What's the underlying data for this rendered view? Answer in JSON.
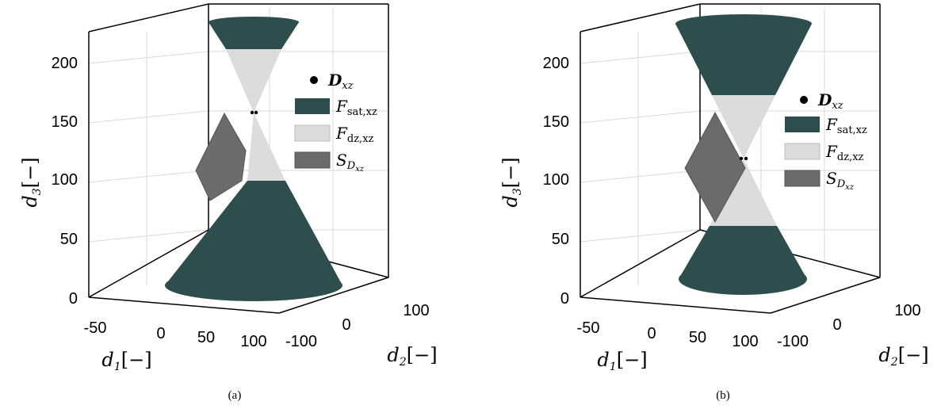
{
  "colors": {
    "sat": "#2e4d4d",
    "dz": "#dcdcdc",
    "s": "#6b6b6b"
  },
  "legend": {
    "point": {
      "main": "D",
      "sub": "xz"
    },
    "sat": {
      "main": "F",
      "sub": "sat,xz"
    },
    "dz": {
      "main": "F",
      "sub": "dz,xz"
    },
    "s": {
      "main": "S",
      "sub": "D",
      "subsub": "xz"
    }
  },
  "chart_data": [
    {
      "type": "3d-surface",
      "caption": "(a)",
      "axes": {
        "d1": {
          "label": "d",
          "sub": "1",
          "unit": "[−]",
          "ticks": [
            "-50",
            "0",
            "50",
            "100"
          ]
        },
        "d2": {
          "label": "d",
          "sub": "2",
          "unit": "[−]",
          "ticks": [
            "-100",
            "0",
            "100"
          ]
        },
        "d3": {
          "label": "d",
          "sub": "3",
          "unit": "[−]",
          "ticks": [
            "0",
            "50",
            "100",
            "150",
            "200"
          ],
          "range": [
            0,
            225
          ]
        }
      },
      "regions": {
        "sat_lower_top": 100,
        "sat_upper_bottom": 210,
        "apex": 158
      }
    },
    {
      "type": "3d-surface",
      "caption": "(b)",
      "axes": {
        "d1": {
          "label": "d",
          "sub": "1",
          "unit": "[−]",
          "ticks": [
            "-50",
            "0",
            "50",
            "100"
          ]
        },
        "d2": {
          "label": "d",
          "sub": "2",
          "unit": "[−]",
          "ticks": [
            "-100",
            "0",
            "100"
          ]
        },
        "d3": {
          "label": "d",
          "sub": "3",
          "unit": "[−]",
          "ticks": [
            "0",
            "50",
            "100",
            "150",
            "200"
          ],
          "range": [
            0,
            225
          ]
        }
      },
      "regions": {
        "sat_lower_top": 62,
        "sat_upper_bottom": 172,
        "apex": 120
      }
    }
  ]
}
